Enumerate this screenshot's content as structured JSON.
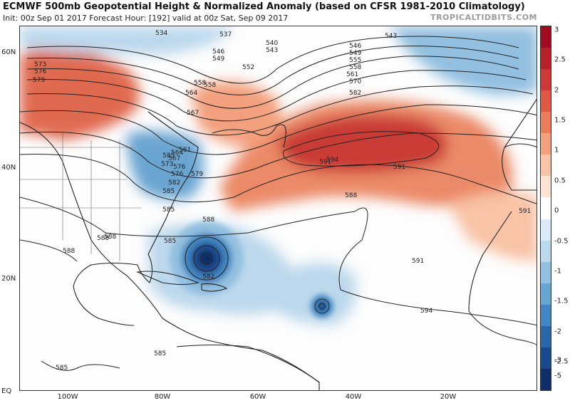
{
  "header": {
    "title": "ECMWF 500mb Geopotential Height & Normalized Anomaly (based on CFSR 1981-2010 Climatology)",
    "subtitle": "Init: 00z Sep 01 2017   Forecast Hour: [192]   valid at 00z Sat, Sep 09 2017",
    "brand": "TROPICALTIDBITS.COM"
  },
  "axes": {
    "lat_labels": [
      "60N",
      "40N",
      "20N",
      "EQ"
    ],
    "lon_labels": [
      "100W",
      "80W",
      "60W",
      "40W",
      "20W"
    ]
  },
  "contour_labels": [
    "534",
    "537",
    "540",
    "543",
    "543",
    "546",
    "546",
    "549",
    "549",
    "552",
    "555",
    "558",
    "558",
    "561",
    "564",
    "567",
    "570",
    "573",
    "576",
    "576",
    "579",
    "582",
    "582",
    "585",
    "585",
    "585",
    "585",
    "588",
    "588",
    "588",
    "588",
    "588",
    "591",
    "591",
    "591",
    "591",
    "594",
    "594",
    "585",
    "585",
    "582",
    "579",
    "576",
    "573",
    "567",
    "564",
    "561",
    "558"
  ],
  "colorbar": {
    "ticks": [
      "3",
      "2.5",
      "2",
      "1.5",
      "1",
      "0.5",
      "0",
      "-0.5",
      "-1",
      "-1.5",
      "-2",
      "-2.5",
      "-3",
      "-5"
    ],
    "colors": [
      "#9e0d1f",
      "#b8202a",
      "#cd3a36",
      "#de5a46",
      "#ea7d5c",
      "#f3a07e",
      "#f8c3a6",
      "#fce3d4",
      "#ffffff",
      "#dcebf5",
      "#bcd8ec",
      "#93c0e0",
      "#6aa5d2",
      "#4385c0",
      "#2a66a9",
      "#1a4a8c",
      "#102f6a"
    ]
  }
}
